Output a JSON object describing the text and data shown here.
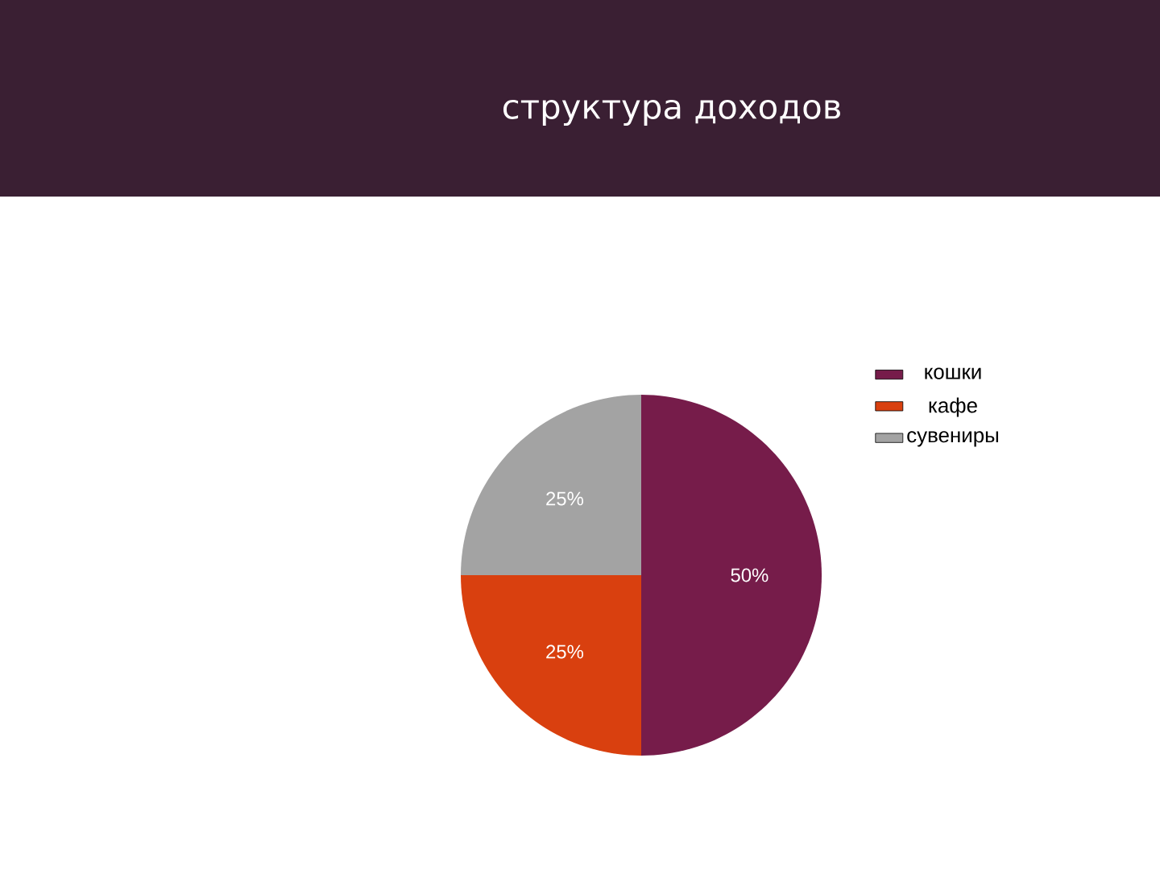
{
  "chart_data": {
    "type": "pie",
    "title": "структура доходов",
    "categories": [
      "кошки",
      "кафе",
      "сувениры"
    ],
    "values": [
      50,
      25,
      25
    ],
    "value_labels": [
      "50%",
      "25%",
      "25%"
    ],
    "colors": [
      "#761c4a",
      "#d9400f",
      "#a3a3a3"
    ],
    "legend": "top right"
  }
}
